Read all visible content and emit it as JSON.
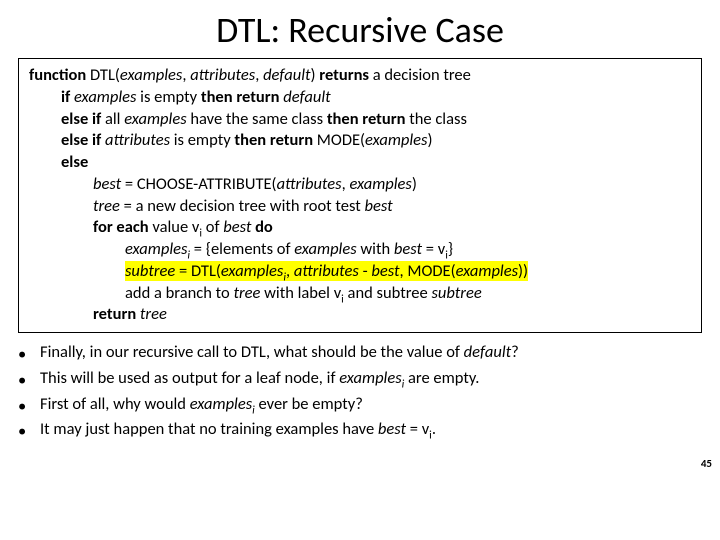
{
  "title": "DTL: Recursive Case",
  "code": {
    "l0a": "function",
    "l0b": " DTL(",
    "l0c": "examples",
    "l0d": ", ",
    "l0e": "attributes",
    "l0f": ", ",
    "l0g": "default",
    "l0h": ") ",
    "l0i": "returns",
    "l0j": " a decision tree",
    "l1a": "if ",
    "l1b": "examples ",
    "l1c": "is empty ",
    "l1d": "then return ",
    "l1e": "default",
    "l2a": "else if ",
    "l2b": "all ",
    "l2c": "examples ",
    "l2d": "have the same class ",
    "l2e": "then return ",
    "l2f": "the class",
    "l3a": "else if ",
    "l3b": "attributes ",
    "l3c": "is empty ",
    "l3d": "then return ",
    "l3e": "MODE(",
    "l3f": "examples",
    "l3g": ")",
    "l4a": "else",
    "l5a": "best",
    "l5b": " = CHOOSE-ATTRIBUTE(",
    "l5c": "attributes",
    "l5d": ", ",
    "l5e": "examples",
    "l5f": ")",
    "l6a": "tree",
    "l6b": " = a new decision tree with root test ",
    "l6c": "best",
    "l7a": "for each ",
    "l7b": "value v",
    "l7c": "i",
    "l7d": " of ",
    "l7e": "best ",
    "l7f": "do",
    "l8a": "examples",
    "l8b": "i",
    "l8c": " = {elements of ",
    "l8d": "examples ",
    "l8e": "with ",
    "l8f": "best",
    "l8g": " = v",
    "l8h": "i",
    "l8i": "}",
    "l9a": "subtree",
    "l9b": " = DTL(",
    "l9c": "examples",
    "l9d": "i",
    "l9e": ", ",
    "l9f": "attributes",
    "l9g": " - ",
    "l9h": "best",
    "l9i": ", MODE(",
    "l9j": "examples",
    "l9k": "))",
    "l10a": "add a branch to ",
    "l10b": "tree ",
    "l10c": "with label v",
    "l10d": "i",
    "l10e": " and subtree ",
    "l10f": "subtree",
    "l11a": "return ",
    "l11b": "tree"
  },
  "bullets": {
    "b1a": "Finally, in our recursive call to DTL, what should be the value of ",
    "b1b": "default",
    "b1c": "?",
    "b2a": "This will be used as output for a leaf node, if ",
    "b2b": "examples",
    "b2c": "i",
    "b2d": " are empty.",
    "b3a": "First of all, why would ",
    "b3b": "examples",
    "b3c": "i",
    "b3d": " ever be empty?",
    "b4a": "It may just happen that no training examples have ",
    "b4b": "best",
    "b4c": " = v",
    "b4d": "i",
    "b4e": "."
  },
  "pagenum": "45",
  "dot": "•"
}
